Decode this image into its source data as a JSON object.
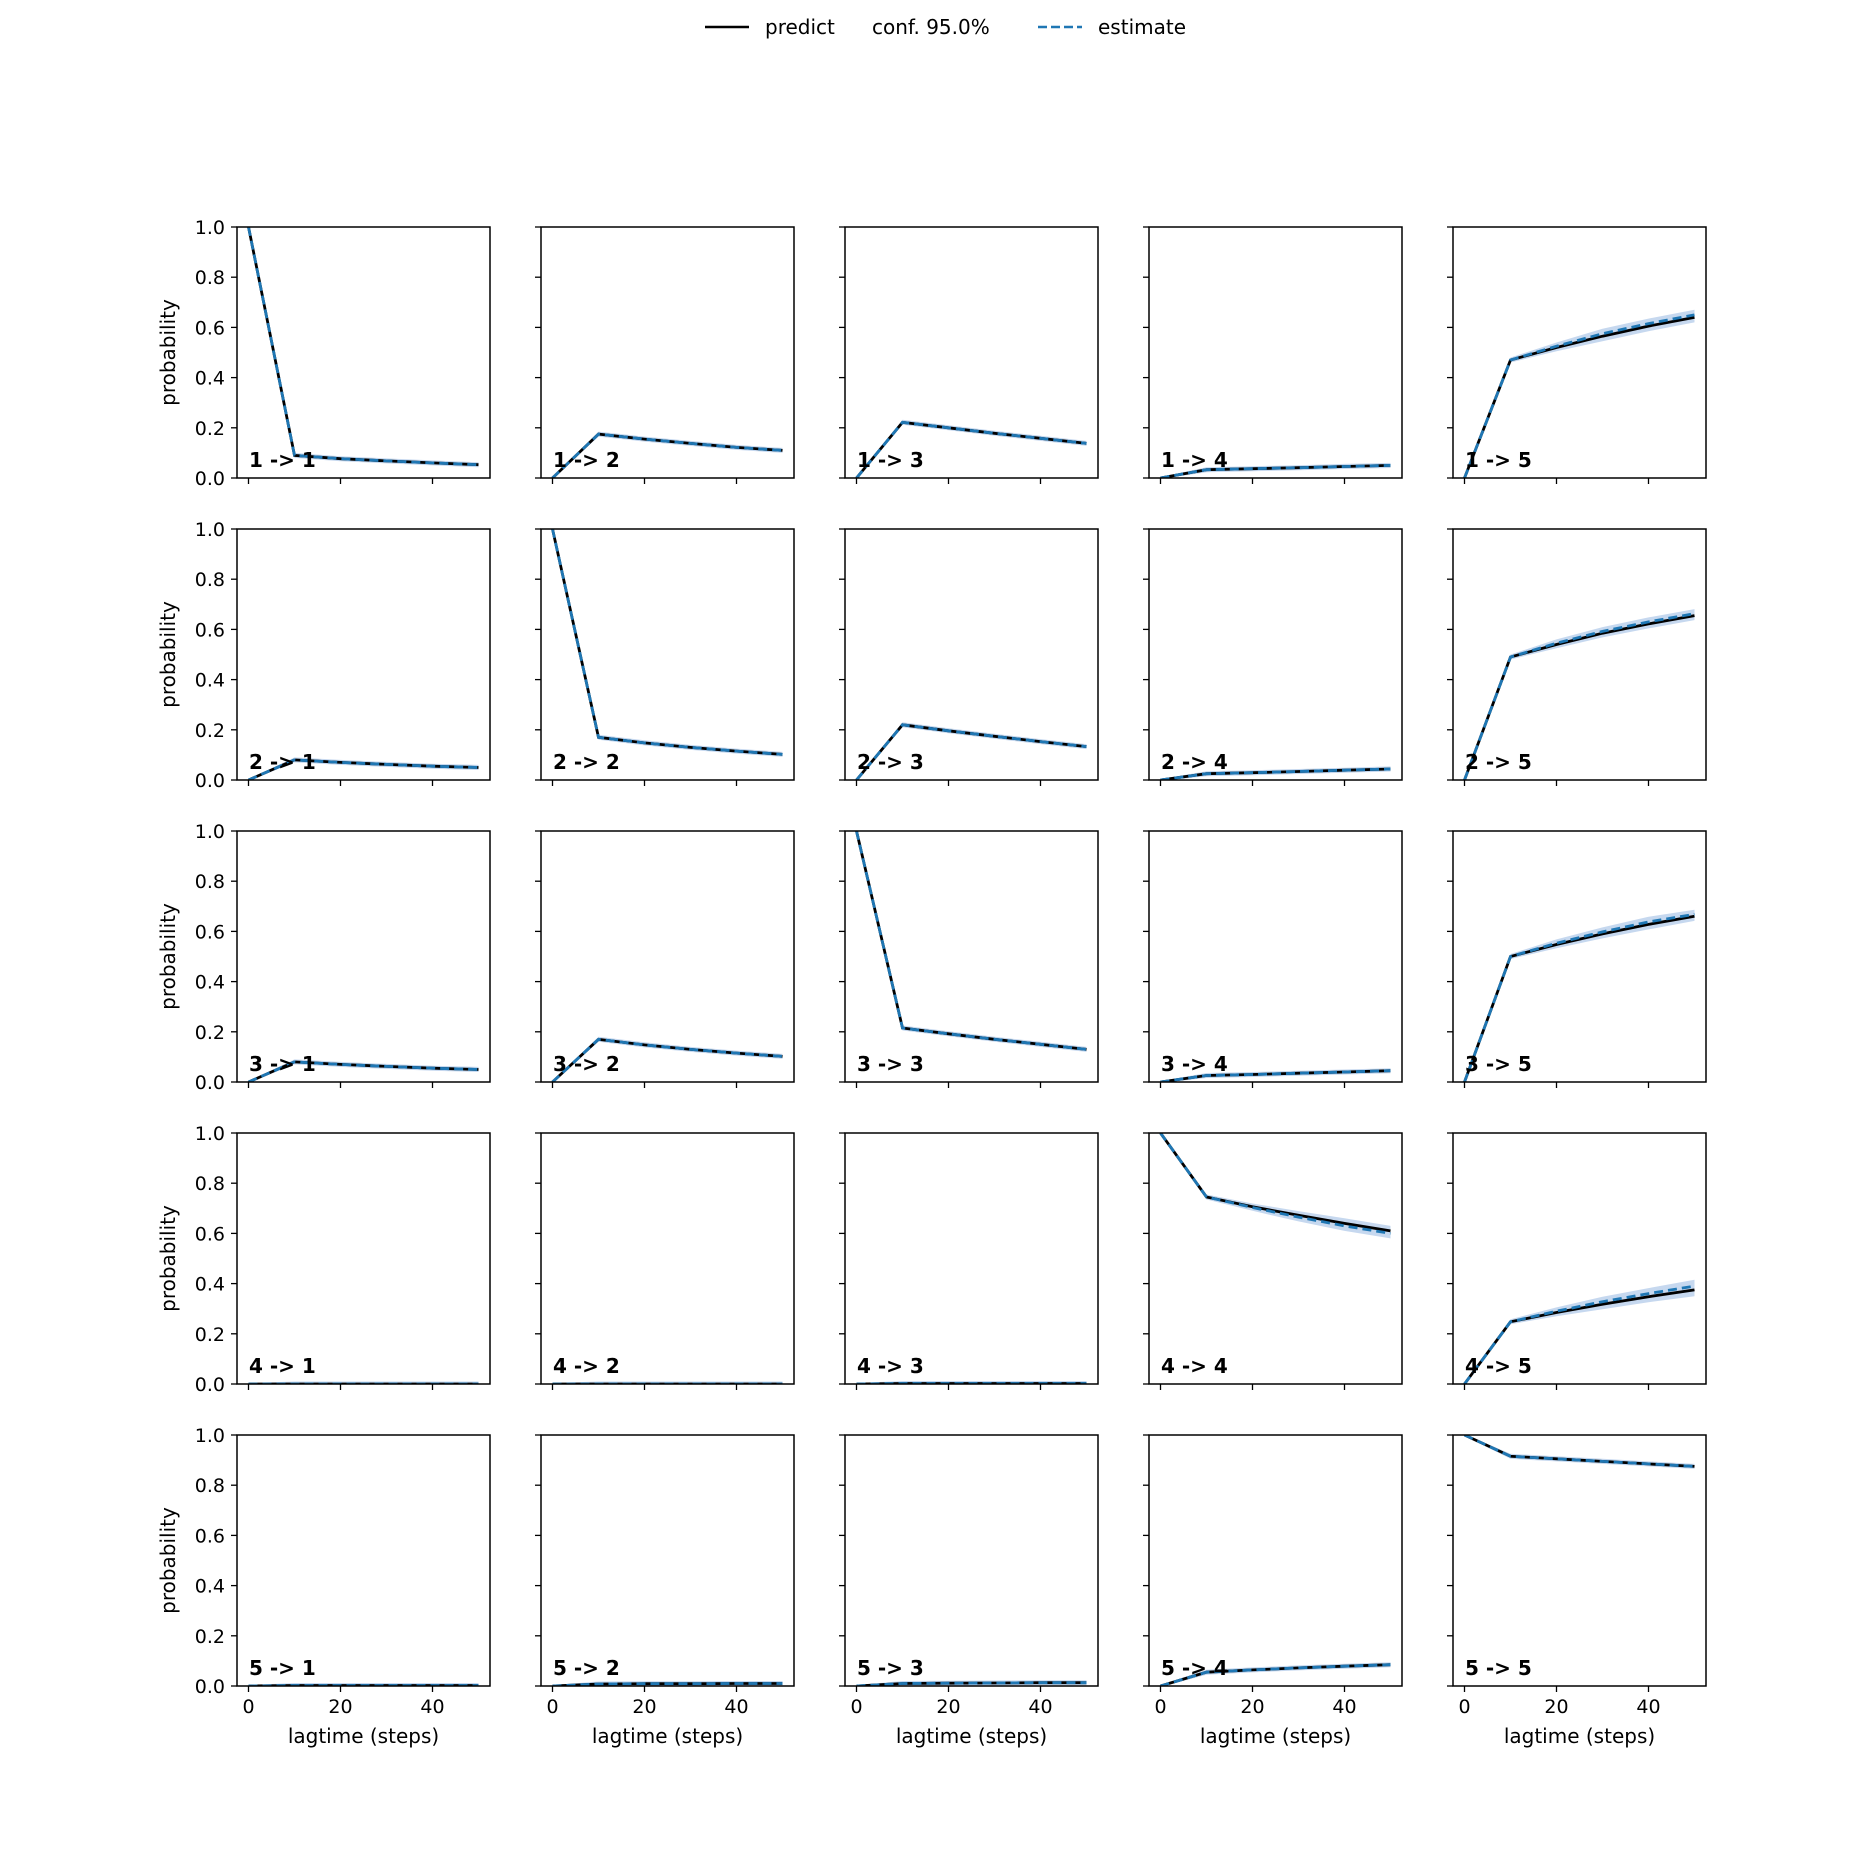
{
  "chart_data": {
    "type": "line",
    "layout": "5x5 grid of panels",
    "legend": {
      "placement": "top-center",
      "entries": [
        {
          "label": "predict",
          "style": "solid",
          "color": "#000000"
        },
        {
          "label": "conf. 95.0%",
          "style": "band",
          "color": "#1f77b4"
        },
        {
          "label": "estimate",
          "style": "dashed",
          "color": "#1f77b4"
        }
      ]
    },
    "xlabel": "lagtime (steps)",
    "ylabel": "probability",
    "xlim": [
      -2.5,
      52.5
    ],
    "ylim": [
      0,
      1
    ],
    "xticks": [
      0,
      20,
      40
    ],
    "yticks": [
      "0.0",
      "0.2",
      "0.4",
      "0.6",
      "0.8",
      "1.0"
    ],
    "x": [
      0,
      10,
      20,
      30,
      40,
      50
    ],
    "colors": {
      "predict": "#000000",
      "estimate": "#1f77b4",
      "band": "#aec7e8"
    },
    "panels": [
      {
        "label": "1 -> 1",
        "predict": [
          1.0,
          0.09,
          0.077,
          0.068,
          0.06,
          0.053
        ],
        "estimate": [
          1.0,
          0.09,
          0.077,
          0.068,
          0.06,
          0.053
        ]
      },
      {
        "label": "1 -> 2",
        "predict": [
          0.0,
          0.175,
          0.155,
          0.138,
          0.122,
          0.11
        ],
        "estimate": [
          0.0,
          0.175,
          0.155,
          0.138,
          0.122,
          0.11
        ]
      },
      {
        "label": "1 -> 3",
        "predict": [
          0.0,
          0.222,
          0.2,
          0.178,
          0.158,
          0.138
        ],
        "estimate": [
          0.0,
          0.222,
          0.2,
          0.178,
          0.158,
          0.138
        ]
      },
      {
        "label": "1 -> 4",
        "predict": [
          0.0,
          0.033,
          0.037,
          0.041,
          0.046,
          0.05
        ],
        "estimate": [
          0.0,
          0.033,
          0.037,
          0.041,
          0.046,
          0.05
        ]
      },
      {
        "label": "1 -> 5",
        "predict": [
          0.0,
          0.47,
          0.52,
          0.565,
          0.605,
          0.64
        ],
        "estimate": [
          0.0,
          0.47,
          0.525,
          0.575,
          0.615,
          0.65
        ]
      },
      {
        "label": "2 -> 1",
        "predict": [
          0.0,
          0.08,
          0.07,
          0.062,
          0.055,
          0.05
        ],
        "estimate": [
          0.0,
          0.08,
          0.07,
          0.062,
          0.055,
          0.05
        ]
      },
      {
        "label": "2 -> 2",
        "predict": [
          1.0,
          0.17,
          0.148,
          0.13,
          0.115,
          0.102
        ],
        "estimate": [
          1.0,
          0.17,
          0.148,
          0.13,
          0.115,
          0.102
        ]
      },
      {
        "label": "2 -> 3",
        "predict": [
          0.0,
          0.22,
          0.196,
          0.174,
          0.153,
          0.133
        ],
        "estimate": [
          0.0,
          0.22,
          0.196,
          0.174,
          0.153,
          0.133
        ]
      },
      {
        "label": "2 -> 4",
        "predict": [
          0.0,
          0.025,
          0.029,
          0.034,
          0.039,
          0.044
        ],
        "estimate": [
          0.0,
          0.025,
          0.029,
          0.034,
          0.039,
          0.044
        ]
      },
      {
        "label": "2 -> 5",
        "predict": [
          0.0,
          0.49,
          0.54,
          0.585,
          0.622,
          0.655
        ],
        "estimate": [
          0.0,
          0.49,
          0.545,
          0.592,
          0.63,
          0.663
        ]
      },
      {
        "label": "3 -> 1",
        "predict": [
          0.0,
          0.08,
          0.07,
          0.062,
          0.055,
          0.05
        ],
        "estimate": [
          0.0,
          0.08,
          0.07,
          0.062,
          0.055,
          0.05
        ]
      },
      {
        "label": "3 -> 2",
        "predict": [
          0.0,
          0.17,
          0.148,
          0.13,
          0.115,
          0.102
        ],
        "estimate": [
          0.0,
          0.17,
          0.148,
          0.13,
          0.115,
          0.102
        ]
      },
      {
        "label": "3 -> 3",
        "predict": [
          1.0,
          0.215,
          0.192,
          0.17,
          0.15,
          0.13
        ],
        "estimate": [
          1.0,
          0.215,
          0.192,
          0.17,
          0.15,
          0.13
        ]
      },
      {
        "label": "3 -> 4",
        "predict": [
          0.0,
          0.026,
          0.03,
          0.035,
          0.04,
          0.045
        ],
        "estimate": [
          0.0,
          0.026,
          0.03,
          0.035,
          0.04,
          0.045
        ]
      },
      {
        "label": "3 -> 5",
        "predict": [
          0.0,
          0.5,
          0.548,
          0.59,
          0.628,
          0.66
        ],
        "estimate": [
          0.0,
          0.5,
          0.553,
          0.598,
          0.638,
          0.668
        ]
      },
      {
        "label": "4 -> 1",
        "predict": [
          0.0,
          0.0,
          0.0,
          0.0,
          0.0,
          0.0
        ],
        "estimate": [
          0.0,
          0.0,
          0.0,
          0.0,
          0.0,
          0.0
        ]
      },
      {
        "label": "4 -> 2",
        "predict": [
          0.0,
          0.0,
          0.0,
          0.0,
          0.0,
          0.0
        ],
        "estimate": [
          0.0,
          0.0,
          0.0,
          0.0,
          0.0,
          0.0
        ]
      },
      {
        "label": "4 -> 3",
        "predict": [
          0.0,
          0.002,
          0.002,
          0.002,
          0.002,
          0.002
        ],
        "estimate": [
          0.0,
          0.002,
          0.002,
          0.002,
          0.002,
          0.002
        ]
      },
      {
        "label": "4 -> 4",
        "predict": [
          1.0,
          0.745,
          0.706,
          0.672,
          0.64,
          0.61
        ],
        "estimate": [
          1.0,
          0.745,
          0.703,
          0.665,
          0.63,
          0.6
        ]
      },
      {
        "label": "4 -> 5",
        "predict": [
          0.0,
          0.248,
          0.285,
          0.318,
          0.348,
          0.375
        ],
        "estimate": [
          0.0,
          0.248,
          0.29,
          0.328,
          0.36,
          0.39
        ]
      },
      {
        "label": "5 -> 1",
        "predict": [
          0.0,
          0.002,
          0.002,
          0.002,
          0.002,
          0.002
        ],
        "estimate": [
          0.0,
          0.002,
          0.002,
          0.002,
          0.002,
          0.002
        ]
      },
      {
        "label": "5 -> 2",
        "predict": [
          0.0,
          0.008,
          0.009,
          0.009,
          0.01,
          0.01
        ],
        "estimate": [
          0.0,
          0.008,
          0.009,
          0.009,
          0.01,
          0.01
        ]
      },
      {
        "label": "5 -> 3",
        "predict": [
          0.0,
          0.01,
          0.011,
          0.012,
          0.013,
          0.013
        ],
        "estimate": [
          0.0,
          0.01,
          0.011,
          0.012,
          0.013,
          0.013
        ]
      },
      {
        "label": "5 -> 4",
        "predict": [
          0.0,
          0.055,
          0.064,
          0.072,
          0.079,
          0.085
        ],
        "estimate": [
          0.0,
          0.055,
          0.064,
          0.072,
          0.079,
          0.085
        ]
      },
      {
        "label": "5 -> 5",
        "predict": [
          1.0,
          0.915,
          0.905,
          0.895,
          0.885,
          0.875
        ],
        "estimate": [
          1.0,
          0.915,
          0.905,
          0.895,
          0.885,
          0.875
        ]
      }
    ]
  }
}
